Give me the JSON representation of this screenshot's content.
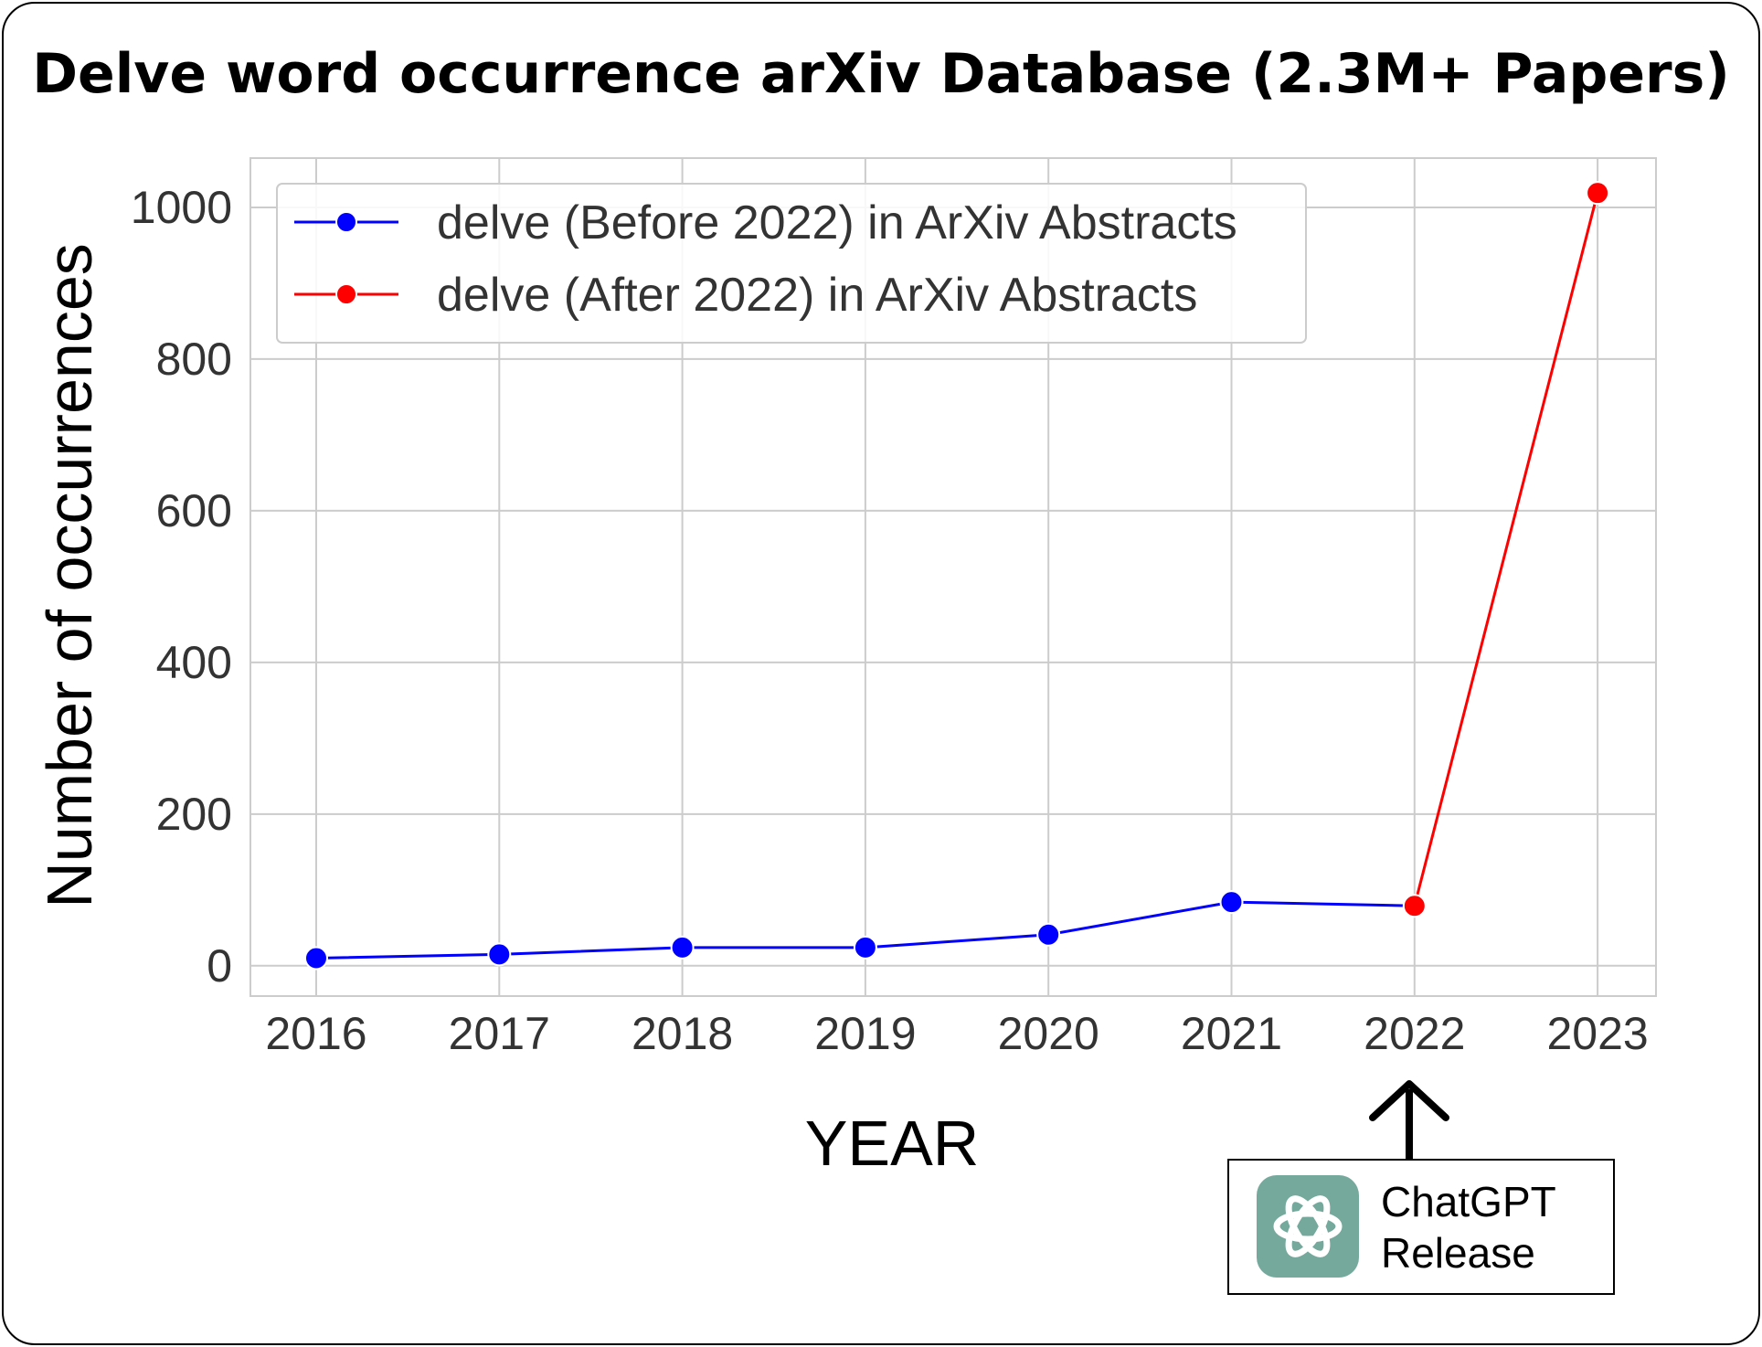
{
  "colors": {
    "before": "#0000ff",
    "after": "#ff0000",
    "grid": "#cccccc",
    "axes_text": "#333333",
    "chatgpt_logo_bg": "#75a99c"
  },
  "chart_data": {
    "type": "line",
    "title": "Delve word occurrence arXiv Database (2.3M+ Papers)",
    "xlabel": "YEAR",
    "ylabel": "Number of occurrences",
    "ylim": [
      -40,
      1065
    ],
    "yticks": [
      "0",
      "200",
      "400",
      "600",
      "800",
      "1000"
    ],
    "categories": [
      "2016",
      "2017",
      "2018",
      "2019",
      "2020",
      "2021",
      "2022",
      "2023"
    ],
    "grid": true,
    "legend_position": "top-left",
    "series": [
      {
        "name": "delve (Before 2022) in ArXiv Abstracts",
        "color": "#0000ff",
        "points": [
          {
            "x": "2016",
            "y": 10
          },
          {
            "x": "2017",
            "y": 15
          },
          {
            "x": "2018",
            "y": 24
          },
          {
            "x": "2019",
            "y": 24
          },
          {
            "x": "2020",
            "y": 41
          },
          {
            "x": "2021",
            "y": 84
          }
        ]
      },
      {
        "name": "delve (After 2022) in ArXiv Abstracts",
        "color": "#ff0000",
        "points": [
          {
            "x": "2022",
            "y": 79
          },
          {
            "x": "2023",
            "y": 1019
          }
        ]
      }
    ],
    "annotations": [
      {
        "x": "2022",
        "text": "ChatGPT Release",
        "icon": "chatgpt-logo-icon"
      }
    ]
  },
  "callout": {
    "line1": "ChatGPT",
    "line2": "Release",
    "icon": "chatgpt-logo-icon"
  }
}
